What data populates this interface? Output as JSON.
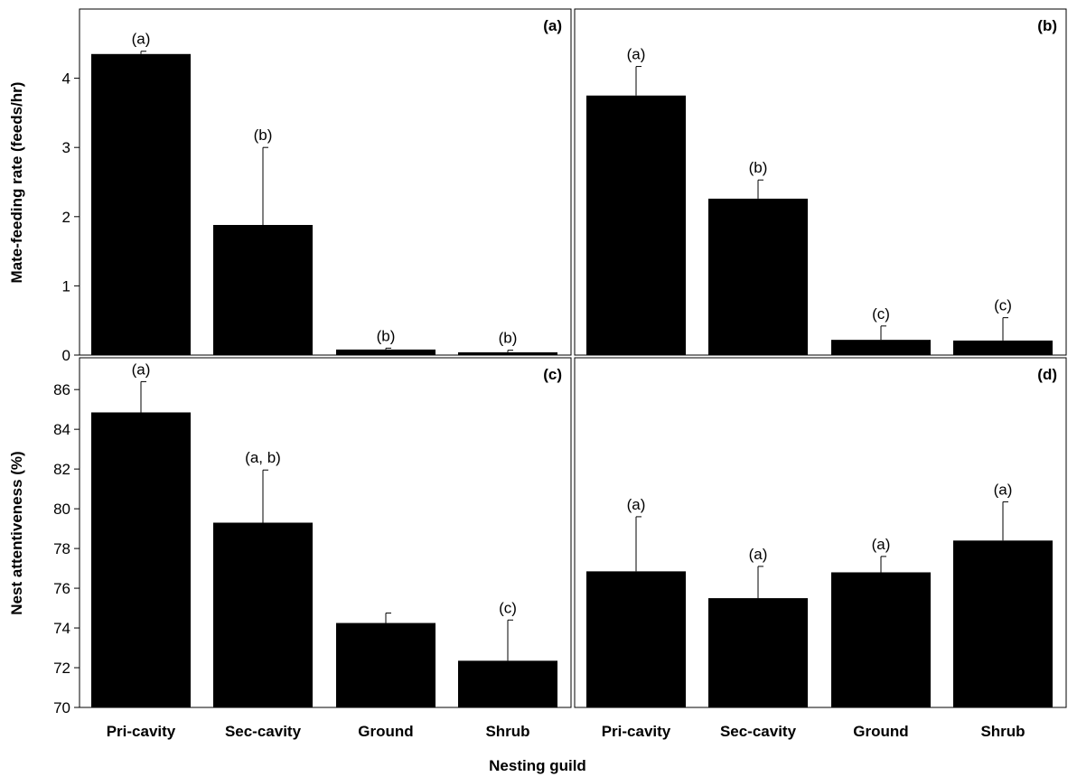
{
  "figure": {
    "xlabel": "Nesting guild",
    "ylabel_top": "Mate-feeding rate (feeds/hr)",
    "ylabel_bottom": "Nest attentiveness (%)"
  },
  "chart_data": [
    {
      "panel": "(a)",
      "type": "bar",
      "categories": [
        "Pri-cavity",
        "Sec-cavity",
        "Ground",
        "Shrub"
      ],
      "values": [
        4.35,
        1.88,
        0.08,
        0.04
      ],
      "errors": [
        0.04,
        1.12,
        0.02,
        0.03
      ],
      "significance": [
        "(a)",
        "(b)",
        "(b)",
        "(b)"
      ],
      "ylim": [
        0,
        5
      ],
      "yticks": [
        0,
        1,
        2,
        3,
        4
      ],
      "ylabel": "Mate-feeding rate (feeds/hr)"
    },
    {
      "panel": "(b)",
      "type": "bar",
      "categories": [
        "Pri-cavity",
        "Sec-cavity",
        "Ground",
        "Shrub"
      ],
      "values": [
        3.75,
        2.26,
        0.22,
        0.21
      ],
      "errors": [
        0.42,
        0.27,
        0.2,
        0.33
      ],
      "significance": [
        "(a)",
        "(b)",
        "(c)",
        "(c)"
      ],
      "ylim": [
        0,
        5
      ],
      "yticks": []
    },
    {
      "panel": "(c)",
      "type": "bar",
      "categories": [
        "Pri-cavity",
        "Sec-cavity",
        "Ground",
        "Shrub"
      ],
      "values": [
        84.85,
        79.3,
        74.25,
        72.35
      ],
      "errors": [
        1.55,
        2.65,
        0.5,
        2.05
      ],
      "significance": [
        "(a)",
        "(a, b)",
        "",
        "(c)"
      ],
      "ylim": [
        70,
        87.6
      ],
      "yticks": [
        70,
        72,
        74,
        76,
        78,
        80,
        82,
        84,
        86
      ],
      "ylabel": "Nest attentiveness (%)"
    },
    {
      "panel": "(d)",
      "type": "bar",
      "categories": [
        "Pri-cavity",
        "Sec-cavity",
        "Ground",
        "Shrub"
      ],
      "values": [
        76.85,
        75.5,
        76.8,
        78.4
      ],
      "errors": [
        2.75,
        1.6,
        0.8,
        1.95
      ],
      "significance": [
        "(a)",
        "(a)",
        "(a)",
        "(a)"
      ],
      "ylim": [
        70,
        87.6
      ],
      "yticks": []
    }
  ]
}
